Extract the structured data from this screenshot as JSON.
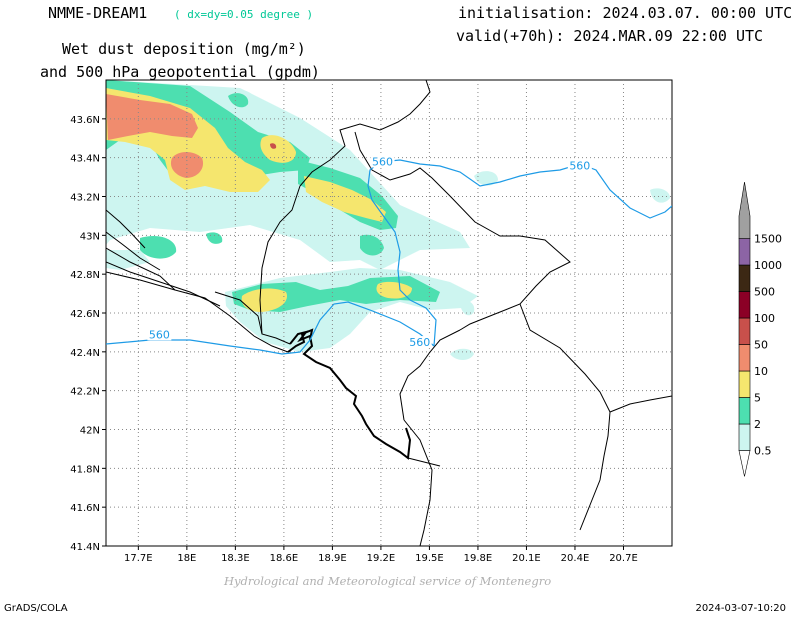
{
  "header": {
    "model": "NMME-DREAM1",
    "resolution": "( dx=dy=0.05 degree )",
    "init": "initialisation: 2024.03.07. 00:00 UTC",
    "valid": "valid(+70h): 2024.MAR.09 22:00 UTC",
    "field_line1": "Wet dust deposition (mg/m²)",
    "field_line2": "and 500 hPa geopotential (gpdm)"
  },
  "map": {
    "lon_range": [
      17.5,
      21.0
    ],
    "lat_range": [
      41.4,
      43.8
    ],
    "lon_ticks": [
      "17.7E",
      "18E",
      "18.3E",
      "18.6E",
      "18.9E",
      "19.2E",
      "19.5E",
      "19.8E",
      "20.1E",
      "20.4E",
      "20.7E"
    ],
    "lon_tick_values": [
      17.7,
      18.0,
      18.3,
      18.6,
      18.9,
      19.2,
      19.5,
      19.8,
      20.1,
      20.4,
      20.7
    ],
    "lat_ticks": [
      "43.6N",
      "43.4N",
      "43.2N",
      "43N",
      "42.8N",
      "42.6N",
      "42.4N",
      "42.2N",
      "42N",
      "41.8N",
      "41.6N",
      "41.4N"
    ],
    "lat_tick_values": [
      43.6,
      43.4,
      43.2,
      43.0,
      42.8,
      42.6,
      42.4,
      42.2,
      42.0,
      41.8,
      41.6,
      41.4
    ],
    "grid": true,
    "contour_label": "560",
    "contour_value": 560,
    "contour_color": "#1e9be6"
  },
  "legend": {
    "labels": [
      "0.5",
      "2",
      "5",
      "10",
      "50",
      "100",
      "500",
      "1000",
      "1500"
    ],
    "colors": [
      "#cdf5f0",
      "#4ddfb0",
      "#f5e66e",
      "#f08c6e",
      "#c8504b",
      "#8b0026",
      "#3c2814",
      "#8c64a5",
      "#a0a0a0"
    ]
  },
  "footer": {
    "credit": "Hydrological and Meteorological service of Montenegro",
    "software": "GrADS/COLA",
    "timestamp": "2024-03-07-10:20"
  }
}
